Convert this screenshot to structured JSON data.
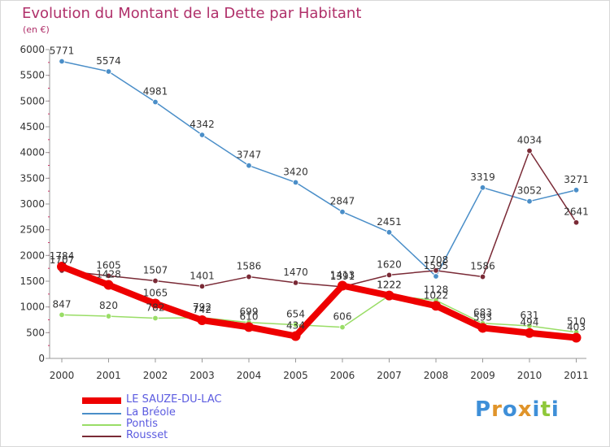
{
  "header": {
    "title": "Evolution du Montant de la Dette par Habitant",
    "subtitle": "(en €)"
  },
  "logo": {
    "letters": [
      "P",
      "r",
      "o",
      "x",
      "i",
      "t",
      "i"
    ],
    "colors": [
      "#3e8fd8",
      "#e0942a",
      "#3e8fd8",
      "#e0942a",
      "#3e8fd8",
      "#8fc83a",
      "#3e8fd8"
    ]
  },
  "chart_data": {
    "type": "line",
    "title": "Evolution du Montant de la Dette par Habitant",
    "subtitle": "(en €)",
    "xlabel": "",
    "ylabel": "",
    "x": [
      "2000",
      "2001",
      "2002",
      "2003",
      "2004",
      "2005",
      "2006",
      "2007",
      "2008",
      "2009",
      "2010",
      "2011"
    ],
    "ylim": [
      0,
      6000
    ],
    "yticks": [
      "0",
      "500",
      "1000",
      "1500",
      "2000",
      "2500",
      "3000",
      "3500",
      "4000",
      "4500",
      "5000",
      "5500",
      "6000"
    ],
    "grid": false,
    "legend_position": "bottom-left",
    "series": [
      {
        "name": "LE SAUZE-DU-LAC",
        "color": "#ee0000",
        "values": [
          1784,
          1428,
          1065,
          742,
          610,
          434,
          1413,
          1222,
          1022,
          593,
          494,
          403
        ],
        "labels": [
          "1784",
          "1428",
          "1065",
          "742",
          "610",
          "434",
          "1413",
          "1222",
          "1022",
          "593",
          "494",
          "403"
        ]
      },
      {
        "name": "La Bréole",
        "color": "#4a8ec8",
        "values": [
          5771,
          5574,
          4981,
          4342,
          3747,
          3420,
          2847,
          2451,
          1595,
          3319,
          3052,
          3271
        ],
        "labels": [
          "5771",
          "5574",
          "4981",
          "4342",
          "3747",
          "3420",
          "2847",
          "2451",
          "1595",
          "3319",
          "3052",
          "3271"
        ]
      },
      {
        "name": "Pontis",
        "color": "#99dd66",
        "values": [
          847,
          820,
          782,
          792,
          699,
          654,
          606,
          1222,
          1128,
          683,
          631,
          510
        ],
        "labels": [
          "847",
          "820",
          "782",
          "792",
          "699",
          "654",
          "606",
          "1222",
          "1128",
          "683",
          "631",
          "510"
        ]
      },
      {
        "name": "Rousset",
        "color": "#7a2a36",
        "values": [
          1707,
          1605,
          1507,
          1401,
          1586,
          1470,
          1391,
          1620,
          1708,
          1586,
          4034,
          2641
        ],
        "labels": [
          "1707",
          "1605",
          "1507",
          "1401",
          "1586",
          "1470",
          "1391",
          "1620",
          "1708",
          "1586",
          "4034",
          "2641"
        ]
      }
    ]
  }
}
